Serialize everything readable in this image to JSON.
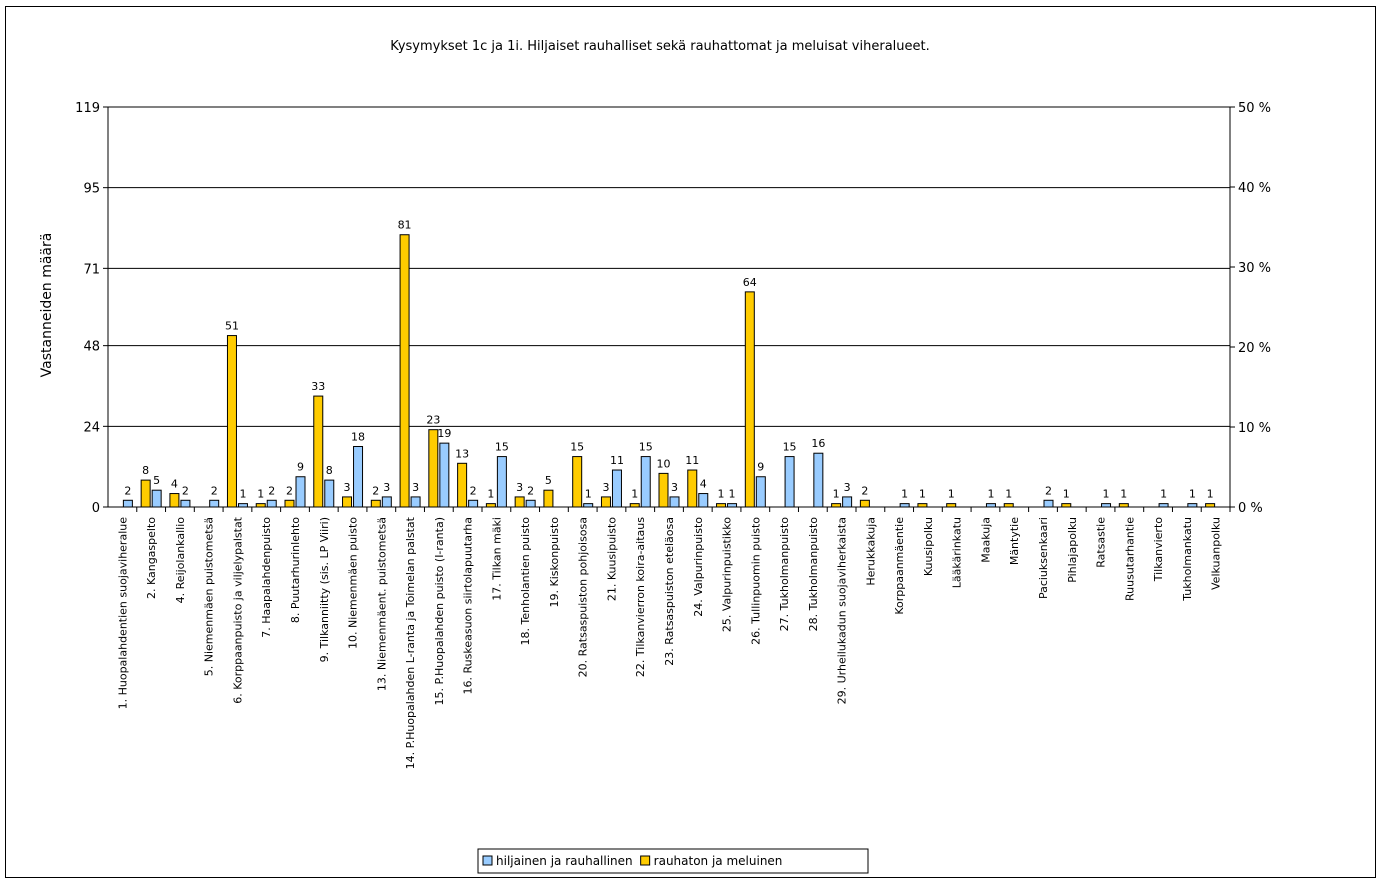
{
  "chart_data": {
    "type": "bar",
    "title": "Kysymykset 1c ja 1i. Hiljaiset rauhalliset sekä rauhattomat ja meluisat viheralueet.",
    "ylabel": "Vastanneiden määrä",
    "ylim": [
      0,
      119
    ],
    "yticks": [
      "0",
      "24",
      "48",
      "71",
      "95",
      "119"
    ],
    "y2lim": [
      0,
      50
    ],
    "y2ticks": [
      "0 %",
      "10 %",
      "20 %",
      "30 %",
      "40 %",
      "50 %"
    ],
    "grid": true,
    "legend_position": "bottom",
    "categories": [
      "1. Huopalahdentien suojaviheralue",
      "2. Kangaspelto",
      "4. Reijolankallio",
      "5. Niemenmäen puistometsä",
      "6. Korppaanpuisto ja viljelypalstat",
      "7. Haapalahdenpuisto",
      "8. Puutarhurinlehto",
      "9. Tilkanniitty (sis. LP Viiri)",
      "10. Niemenmäen puisto",
      "13. Niemenmäent. puistometsä",
      "14. P.Huopalahden L-ranta ja Toimelan palstat",
      "15. P.Huopalahden puisto (I-ranta)",
      "16. Ruskeasuon siirtolapuutarha",
      "17. Tilkan mäki",
      "18. Tenholantien puisto",
      "19. Kiskonpuisto",
      "20. Ratsaspuiston pohjoisosa",
      "21. Kuusipuisto",
      "22. Tilkanvierron koira-aitaus",
      "23. Ratsaspuiston eteläosa",
      "24. Valpurinpuisto",
      "25. Valpurinpuistikko",
      "26. Tullinpuomin puisto",
      "27. Tukholmanpuisto",
      "28. Tukholmanpuisto",
      "29. Urheilukadun suojaviherkaista",
      "Herukkakuja",
      "Korppaanmäentie",
      "Kuusipolku",
      "Lääkärinkatu",
      "Maakuja",
      "Mäntytie",
      "Paciuksenkaari",
      "Pihlajapolku",
      "Ratsastie",
      "Ruusutarhantie",
      "Tilkanvierto",
      "Tukholmankatu",
      "Velkuanpolku"
    ],
    "series": [
      {
        "name": "hiljainen ja rauhallinen",
        "color": "#99CCFF",
        "values": [
          2,
          5,
          2,
          2,
          1,
          2,
          9,
          8,
          18,
          3,
          3,
          19,
          2,
          15,
          2,
          0,
          1,
          11,
          15,
          3,
          4,
          1,
          9,
          15,
          16,
          3,
          0,
          1,
          0,
          0,
          1,
          0,
          2,
          0,
          1,
          0,
          1,
          1,
          0
        ]
      },
      {
        "name": "rauhaton ja meluinen",
        "color": "#FFCC00",
        "values": [
          0,
          8,
          4,
          0,
          51,
          1,
          2,
          33,
          3,
          2,
          81,
          23,
          13,
          1,
          3,
          5,
          15,
          3,
          1,
          10,
          11,
          1,
          64,
          0,
          0,
          1,
          2,
          0,
          1,
          1,
          0,
          1,
          0,
          1,
          0,
          1,
          0,
          0,
          1
        ]
      }
    ]
  }
}
